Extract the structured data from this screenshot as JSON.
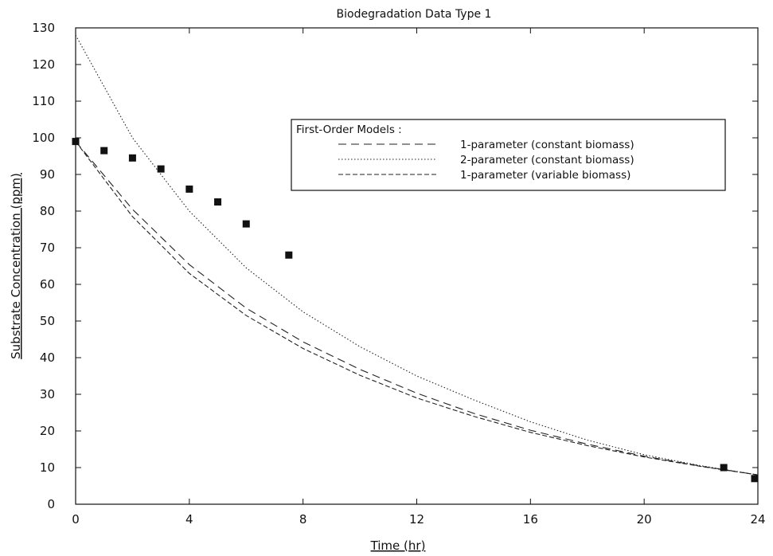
{
  "chart_data": {
    "type": "line",
    "title": "Biodegradation Data Type 1",
    "xlabel": "Time (hr)",
    "ylabel": "Substrate Concentration (ppm)",
    "xlim": [
      0,
      24
    ],
    "ylim": [
      0,
      130
    ],
    "x_ticks": [
      0,
      4,
      8,
      12,
      16,
      20,
      24
    ],
    "y_ticks": [
      0,
      10,
      20,
      30,
      40,
      50,
      60,
      70,
      80,
      90,
      100,
      110,
      120,
      130
    ],
    "grid": false,
    "legend": {
      "title": "First-Order Models :",
      "placement": "upper-right-center",
      "entries": [
        "1-parameter (constant biomass)",
        "2-parameter (constant biomass)",
        "1-parameter (variable biomass)"
      ]
    },
    "observed": {
      "marker": "square",
      "color": "#111111",
      "x": [
        0,
        1,
        2,
        3,
        4,
        5,
        6,
        7.5,
        22.8,
        24
      ],
      "y": [
        99,
        96.5,
        94.5,
        91.5,
        86,
        82.5,
        76.5,
        68,
        10,
        7
      ]
    },
    "series": [
      {
        "name": "1-parameter (constant biomass)",
        "style": "dashed-sparse",
        "x": [
          0,
          2,
          4,
          6,
          8,
          10,
          12,
          14,
          16,
          18,
          20,
          22,
          24
        ],
        "y": [
          99,
          80.5,
          65.4,
          53.5,
          44.3,
          36.8,
          30.3,
          24.8,
          20.2,
          16.4,
          13.1,
          10.4,
          8
        ]
      },
      {
        "name": "2-parameter (constant biomass)",
        "style": "dotted",
        "x": [
          0,
          2,
          4,
          6,
          8,
          10,
          12,
          14,
          16,
          18,
          20,
          22,
          24
        ],
        "y": [
          128,
          100,
          80,
          64.5,
          52.5,
          43,
          35,
          28.5,
          22.5,
          17.5,
          13.5,
          10.5,
          8
        ]
      },
      {
        "name": "1-parameter (variable biomass)",
        "style": "dashed",
        "x": [
          0,
          2,
          4,
          6,
          8,
          10,
          12,
          14,
          16,
          18,
          20,
          22,
          24
        ],
        "y": [
          99,
          78.5,
          63,
          51.5,
          42.5,
          35.2,
          29,
          24,
          19.6,
          16,
          12.9,
          10.3,
          8
        ]
      }
    ]
  }
}
